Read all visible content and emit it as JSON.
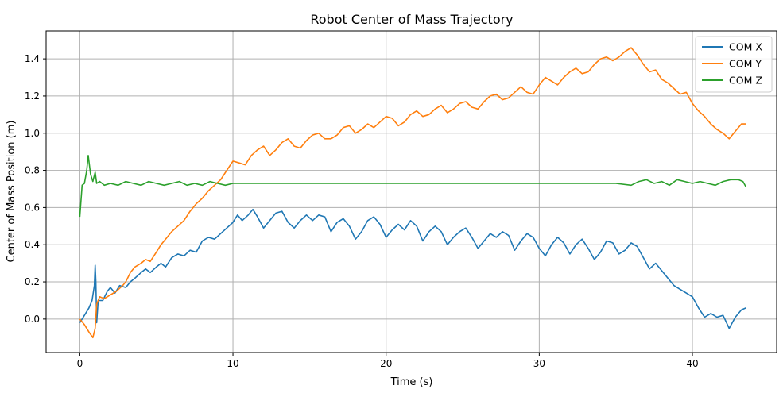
{
  "chart_data": {
    "type": "line",
    "title": "Robot Center of Mass Trajectory",
    "xlabel": "Time (s)",
    "ylabel": "Center of Mass Position (m)",
    "xlim": [
      -2.2,
      45.5
    ],
    "ylim": [
      -0.18,
      1.55
    ],
    "xticks": [
      0,
      10,
      20,
      30,
      40
    ],
    "yticks": [
      0.0,
      0.2,
      0.4,
      0.6,
      0.8,
      1.0,
      1.2,
      1.4
    ],
    "ytick_labels": [
      "0.0",
      "0.2",
      "0.4",
      "0.6",
      "0.8",
      "1.0",
      "1.2",
      "1.4"
    ],
    "grid": true,
    "legend_position": "top-right",
    "series": [
      {
        "name": "COM X",
        "color": "#1f77b4",
        "points": [
          [
            0,
            -0.02
          ],
          [
            0.3,
            0.02
          ],
          [
            0.6,
            0.06
          ],
          [
            0.8,
            0.1
          ],
          [
            0.95,
            0.18
          ],
          [
            1.0,
            0.29
          ],
          [
            1.05,
            0.2
          ],
          [
            1.1,
            -0.02
          ],
          [
            1.2,
            0.1
          ],
          [
            1.5,
            0.1
          ],
          [
            1.8,
            0.15
          ],
          [
            2,
            0.17
          ],
          [
            2.3,
            0.14
          ],
          [
            2.6,
            0.18
          ],
          [
            3,
            0.17
          ],
          [
            3.3,
            0.2
          ],
          [
            3.6,
            0.22
          ],
          [
            4,
            0.25
          ],
          [
            4.3,
            0.27
          ],
          [
            4.6,
            0.25
          ],
          [
            5,
            0.28
          ],
          [
            5.3,
            0.3
          ],
          [
            5.6,
            0.28
          ],
          [
            6,
            0.33
          ],
          [
            6.4,
            0.35
          ],
          [
            6.8,
            0.34
          ],
          [
            7.2,
            0.37
          ],
          [
            7.6,
            0.36
          ],
          [
            8,
            0.42
          ],
          [
            8.4,
            0.44
          ],
          [
            8.8,
            0.43
          ],
          [
            9.2,
            0.46
          ],
          [
            9.6,
            0.49
          ],
          [
            10,
            0.52
          ],
          [
            10.3,
            0.56
          ],
          [
            10.6,
            0.53
          ],
          [
            11,
            0.56
          ],
          [
            11.3,
            0.59
          ],
          [
            11.6,
            0.55
          ],
          [
            12,
            0.49
          ],
          [
            12.4,
            0.53
          ],
          [
            12.8,
            0.57
          ],
          [
            13.2,
            0.58
          ],
          [
            13.6,
            0.52
          ],
          [
            14,
            0.49
          ],
          [
            14.4,
            0.53
          ],
          [
            14.8,
            0.56
          ],
          [
            15.2,
            0.53
          ],
          [
            15.6,
            0.56
          ],
          [
            16,
            0.55
          ],
          [
            16.4,
            0.47
          ],
          [
            16.8,
            0.52
          ],
          [
            17.2,
            0.54
          ],
          [
            17.6,
            0.5
          ],
          [
            18,
            0.43
          ],
          [
            18.4,
            0.47
          ],
          [
            18.8,
            0.53
          ],
          [
            19.2,
            0.55
          ],
          [
            19.6,
            0.51
          ],
          [
            20,
            0.44
          ],
          [
            20.4,
            0.48
          ],
          [
            20.8,
            0.51
          ],
          [
            21.2,
            0.48
          ],
          [
            21.6,
            0.53
          ],
          [
            22,
            0.5
          ],
          [
            22.4,
            0.42
          ],
          [
            22.8,
            0.47
          ],
          [
            23.2,
            0.5
          ],
          [
            23.6,
            0.47
          ],
          [
            24,
            0.4
          ],
          [
            24.4,
            0.44
          ],
          [
            24.8,
            0.47
          ],
          [
            25.2,
            0.49
          ],
          [
            25.6,
            0.44
          ],
          [
            26,
            0.38
          ],
          [
            26.4,
            0.42
          ],
          [
            26.8,
            0.46
          ],
          [
            27.2,
            0.44
          ],
          [
            27.6,
            0.47
          ],
          [
            28,
            0.45
          ],
          [
            28.4,
            0.37
          ],
          [
            28.8,
            0.42
          ],
          [
            29.2,
            0.46
          ],
          [
            29.6,
            0.44
          ],
          [
            30,
            0.38
          ],
          [
            30.4,
            0.34
          ],
          [
            30.8,
            0.4
          ],
          [
            31.2,
            0.44
          ],
          [
            31.6,
            0.41
          ],
          [
            32,
            0.35
          ],
          [
            32.4,
            0.4
          ],
          [
            32.8,
            0.43
          ],
          [
            33.2,
            0.38
          ],
          [
            33.6,
            0.32
          ],
          [
            34,
            0.36
          ],
          [
            34.4,
            0.42
          ],
          [
            34.8,
            0.41
          ],
          [
            35.2,
            0.35
          ],
          [
            35.6,
            0.37
          ],
          [
            36,
            0.41
          ],
          [
            36.4,
            0.39
          ],
          [
            36.8,
            0.33
          ],
          [
            37.2,
            0.27
          ],
          [
            37.6,
            0.3
          ],
          [
            38,
            0.26
          ],
          [
            38.4,
            0.22
          ],
          [
            38.8,
            0.18
          ],
          [
            39.2,
            0.16
          ],
          [
            39.6,
            0.14
          ],
          [
            40,
            0.12
          ],
          [
            40.4,
            0.06
          ],
          [
            40.8,
            0.01
          ],
          [
            41.2,
            0.03
          ],
          [
            41.6,
            0.01
          ],
          [
            42,
            0.02
          ],
          [
            42.4,
            -0.05
          ],
          [
            42.8,
            0.01
          ],
          [
            43.2,
            0.05
          ],
          [
            43.5,
            0.06
          ]
        ]
      },
      {
        "name": "COM Y",
        "color": "#ff7f0e",
        "points": [
          [
            0,
            0.0
          ],
          [
            0.3,
            -0.03
          ],
          [
            0.6,
            -0.07
          ],
          [
            0.85,
            -0.1
          ],
          [
            1.0,
            -0.05
          ],
          [
            1.1,
            0.08
          ],
          [
            1.3,
            0.12
          ],
          [
            1.6,
            0.11
          ],
          [
            2,
            0.13
          ],
          [
            2.4,
            0.15
          ],
          [
            2.8,
            0.18
          ],
          [
            3,
            0.2
          ],
          [
            3.3,
            0.25
          ],
          [
            3.6,
            0.28
          ],
          [
            4,
            0.3
          ],
          [
            4.3,
            0.32
          ],
          [
            4.6,
            0.31
          ],
          [
            5,
            0.36
          ],
          [
            5.3,
            0.4
          ],
          [
            5.6,
            0.43
          ],
          [
            6,
            0.47
          ],
          [
            6.4,
            0.5
          ],
          [
            6.8,
            0.53
          ],
          [
            7.2,
            0.58
          ],
          [
            7.6,
            0.62
          ],
          [
            8,
            0.65
          ],
          [
            8.4,
            0.69
          ],
          [
            8.8,
            0.72
          ],
          [
            9.2,
            0.75
          ],
          [
            9.6,
            0.8
          ],
          [
            10,
            0.85
          ],
          [
            10.4,
            0.84
          ],
          [
            10.8,
            0.83
          ],
          [
            11.2,
            0.88
          ],
          [
            11.6,
            0.91
          ],
          [
            12,
            0.93
          ],
          [
            12.4,
            0.88
          ],
          [
            12.8,
            0.91
          ],
          [
            13.2,
            0.95
          ],
          [
            13.6,
            0.97
          ],
          [
            14,
            0.93
          ],
          [
            14.4,
            0.92
          ],
          [
            14.8,
            0.96
          ],
          [
            15.2,
            0.99
          ],
          [
            15.6,
            1.0
          ],
          [
            16,
            0.97
          ],
          [
            16.4,
            0.97
          ],
          [
            16.8,
            0.99
          ],
          [
            17.2,
            1.03
          ],
          [
            17.6,
            1.04
          ],
          [
            18,
            1.0
          ],
          [
            18.4,
            1.02
          ],
          [
            18.8,
            1.05
          ],
          [
            19.2,
            1.03
          ],
          [
            19.6,
            1.06
          ],
          [
            20,
            1.09
          ],
          [
            20.4,
            1.08
          ],
          [
            20.8,
            1.04
          ],
          [
            21.2,
            1.06
          ],
          [
            21.6,
            1.1
          ],
          [
            22,
            1.12
          ],
          [
            22.4,
            1.09
          ],
          [
            22.8,
            1.1
          ],
          [
            23.2,
            1.13
          ],
          [
            23.6,
            1.15
          ],
          [
            24,
            1.11
          ],
          [
            24.4,
            1.13
          ],
          [
            24.8,
            1.16
          ],
          [
            25.2,
            1.17
          ],
          [
            25.6,
            1.14
          ],
          [
            26,
            1.13
          ],
          [
            26.4,
            1.17
          ],
          [
            26.8,
            1.2
          ],
          [
            27.2,
            1.21
          ],
          [
            27.6,
            1.18
          ],
          [
            28,
            1.19
          ],
          [
            28.4,
            1.22
          ],
          [
            28.8,
            1.25
          ],
          [
            29.2,
            1.22
          ],
          [
            29.6,
            1.21
          ],
          [
            30,
            1.26
          ],
          [
            30.4,
            1.3
          ],
          [
            30.8,
            1.28
          ],
          [
            31.2,
            1.26
          ],
          [
            31.6,
            1.3
          ],
          [
            32,
            1.33
          ],
          [
            32.4,
            1.35
          ],
          [
            32.8,
            1.32
          ],
          [
            33.2,
            1.33
          ],
          [
            33.6,
            1.37
          ],
          [
            34,
            1.4
          ],
          [
            34.4,
            1.41
          ],
          [
            34.8,
            1.39
          ],
          [
            35.2,
            1.41
          ],
          [
            35.6,
            1.44
          ],
          [
            36,
            1.46
          ],
          [
            36.4,
            1.42
          ],
          [
            36.8,
            1.37
          ],
          [
            37.2,
            1.33
          ],
          [
            37.6,
            1.34
          ],
          [
            38,
            1.29
          ],
          [
            38.4,
            1.27
          ],
          [
            38.8,
            1.24
          ],
          [
            39.2,
            1.21
          ],
          [
            39.6,
            1.22
          ],
          [
            40,
            1.16
          ],
          [
            40.4,
            1.12
          ],
          [
            40.8,
            1.09
          ],
          [
            41.2,
            1.05
          ],
          [
            41.6,
            1.02
          ],
          [
            42,
            1.0
          ],
          [
            42.4,
            0.97
          ],
          [
            42.8,
            1.01
          ],
          [
            43.2,
            1.05
          ],
          [
            43.5,
            1.05
          ]
        ]
      },
      {
        "name": "COM Z",
        "color": "#2ca02c",
        "points": [
          [
            0,
            0.55
          ],
          [
            0.15,
            0.72
          ],
          [
            0.3,
            0.73
          ],
          [
            0.45,
            0.8
          ],
          [
            0.55,
            0.88
          ],
          [
            0.7,
            0.78
          ],
          [
            0.85,
            0.74
          ],
          [
            1.0,
            0.79
          ],
          [
            1.1,
            0.73
          ],
          [
            1.3,
            0.74
          ],
          [
            1.6,
            0.72
          ],
          [
            2,
            0.73
          ],
          [
            2.5,
            0.72
          ],
          [
            3,
            0.74
          ],
          [
            3.5,
            0.73
          ],
          [
            4,
            0.72
          ],
          [
            4.5,
            0.74
          ],
          [
            5,
            0.73
          ],
          [
            5.5,
            0.72
          ],
          [
            6,
            0.73
          ],
          [
            6.5,
            0.74
          ],
          [
            7,
            0.72
          ],
          [
            7.5,
            0.73
          ],
          [
            8,
            0.72
          ],
          [
            8.5,
            0.74
          ],
          [
            9,
            0.73
          ],
          [
            9.5,
            0.72
          ],
          [
            10,
            0.73
          ],
          [
            11,
            0.73
          ],
          [
            12,
            0.73
          ],
          [
            13,
            0.73
          ],
          [
            14,
            0.73
          ],
          [
            15,
            0.73
          ],
          [
            16,
            0.73
          ],
          [
            17,
            0.73
          ],
          [
            18,
            0.73
          ],
          [
            19,
            0.73
          ],
          [
            20,
            0.73
          ],
          [
            21,
            0.73
          ],
          [
            22,
            0.73
          ],
          [
            23,
            0.73
          ],
          [
            24,
            0.73
          ],
          [
            25,
            0.73
          ],
          [
            26,
            0.73
          ],
          [
            27,
            0.73
          ],
          [
            28,
            0.73
          ],
          [
            29,
            0.73
          ],
          [
            30,
            0.73
          ],
          [
            31,
            0.73
          ],
          [
            32,
            0.73
          ],
          [
            33,
            0.73
          ],
          [
            34,
            0.73
          ],
          [
            35,
            0.73
          ],
          [
            36,
            0.72
          ],
          [
            36.5,
            0.74
          ],
          [
            37,
            0.75
          ],
          [
            37.5,
            0.73
          ],
          [
            38,
            0.74
          ],
          [
            38.5,
            0.72
          ],
          [
            39,
            0.75
          ],
          [
            39.5,
            0.74
          ],
          [
            40,
            0.73
          ],
          [
            40.5,
            0.74
          ],
          [
            41,
            0.73
          ],
          [
            41.5,
            0.72
          ],
          [
            42,
            0.74
          ],
          [
            42.5,
            0.75
          ],
          [
            43,
            0.75
          ],
          [
            43.3,
            0.74
          ],
          [
            43.5,
            0.71
          ]
        ]
      }
    ]
  }
}
